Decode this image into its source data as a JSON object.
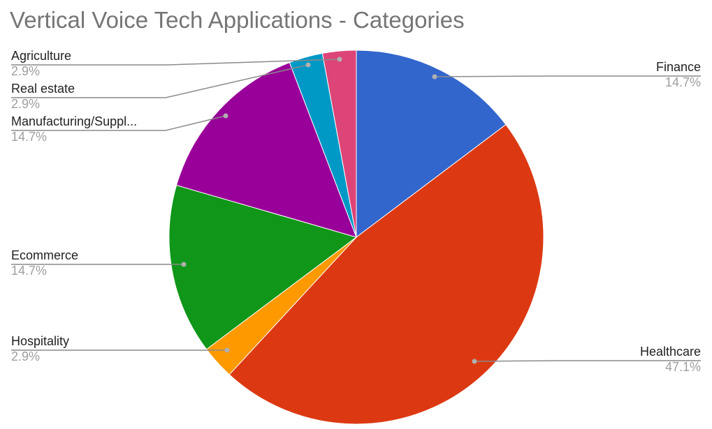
{
  "chart_data": {
    "type": "pie",
    "title": "Vertical Voice Tech Applications - Categories",
    "slices": [
      {
        "label": "Finance",
        "value": 14.7,
        "display": "14.7%",
        "color": "#3366cc"
      },
      {
        "label": "Healthcare",
        "value": 47.1,
        "display": "47.1%",
        "color": "#dc3912"
      },
      {
        "label": "Hospitality",
        "value": 2.9,
        "display": "2.9%",
        "color": "#ff9900"
      },
      {
        "label": "Ecommerce",
        "value": 14.7,
        "display": "14.7%",
        "color": "#109618"
      },
      {
        "label": "Manufacturing/Suppl...",
        "value": 14.7,
        "display": "14.7%",
        "color": "#990099"
      },
      {
        "label": "Real estate",
        "value": 2.9,
        "display": "2.9%",
        "color": "#0099c6"
      },
      {
        "label": "Agriculture",
        "value": 2.9,
        "display": "2.9%",
        "color": "#dd4477"
      }
    ],
    "start_angle": "top",
    "direction": "clockwise",
    "legend": "labeled"
  }
}
